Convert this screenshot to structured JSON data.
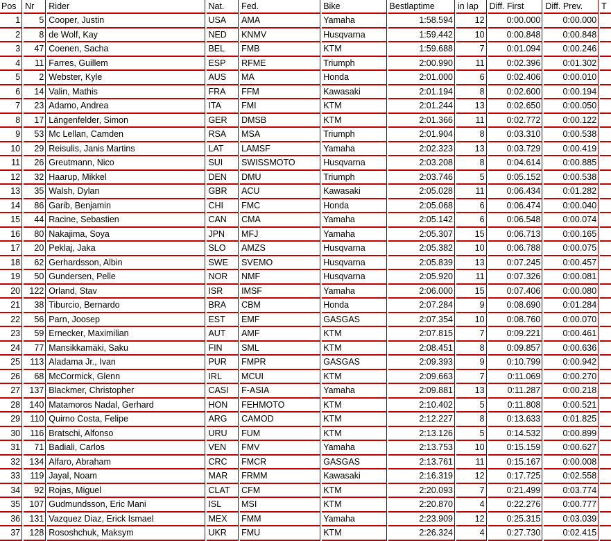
{
  "headers": [
    "Pos",
    "Nr",
    "Rider",
    "Nat.",
    "Fed.",
    "Bike",
    "Bestlaptime",
    "in lap",
    "Diff. First",
    "Diff. Prev.",
    "T"
  ],
  "rows": [
    [
      "1",
      "5",
      "Cooper, Justin",
      "USA",
      "AMA",
      "Yamaha",
      "1:58.594",
      "12",
      "0:00.000",
      "0:00.000",
      ""
    ],
    [
      "2",
      "8",
      "de Wolf, Kay",
      "NED",
      "KNMV",
      "Husqvarna",
      "1:59.442",
      "10",
      "0:00.848",
      "0:00.848",
      ""
    ],
    [
      "3",
      "47",
      "Coenen, Sacha",
      "BEL",
      "FMB",
      "KTM",
      "1:59.688",
      "7",
      "0:01.094",
      "0:00.246",
      ""
    ],
    [
      "4",
      "11",
      "Farres, Guillem",
      "ESP",
      "RFME",
      "Triumph",
      "2:00.990",
      "11",
      "0:02.396",
      "0:01.302",
      ""
    ],
    [
      "5",
      "2",
      "Webster, Kyle",
      "AUS",
      "MA",
      "Honda",
      "2:01.000",
      "6",
      "0:02.406",
      "0:00.010",
      ""
    ],
    [
      "6",
      "14",
      "Valin, Mathis",
      "FRA",
      "FFM",
      "Kawasaki",
      "2:01.194",
      "8",
      "0:02.600",
      "0:00.194",
      ""
    ],
    [
      "7",
      "23",
      "Adamo, Andrea",
      "ITA",
      "FMI",
      "KTM",
      "2:01.244",
      "13",
      "0:02.650",
      "0:00.050",
      ""
    ],
    [
      "8",
      "17",
      "Längenfelder, Simon",
      "GER",
      "DMSB",
      "KTM",
      "2:01.366",
      "11",
      "0:02.772",
      "0:00.122",
      ""
    ],
    [
      "9",
      "53",
      "Mc Lellan, Camden",
      "RSA",
      "MSA",
      "Triumph",
      "2:01.904",
      "8",
      "0:03.310",
      "0:00.538",
      ""
    ],
    [
      "10",
      "29",
      "Reisulis, Janis Martins",
      "LAT",
      "LAMSF",
      "Yamaha",
      "2:02.323",
      "13",
      "0:03.729",
      "0:00.419",
      ""
    ],
    [
      "11",
      "26",
      "Greutmann, Nico",
      "SUI",
      "SWISSMOTO",
      "Husqvarna",
      "2:03.208",
      "8",
      "0:04.614",
      "0:00.885",
      ""
    ],
    [
      "12",
      "32",
      "Haarup, Mikkel",
      "DEN",
      "DMU",
      "Triumph",
      "2:03.746",
      "5",
      "0:05.152",
      "0:00.538",
      ""
    ],
    [
      "13",
      "35",
      "Walsh, Dylan",
      "GBR",
      "ACU",
      "Kawasaki",
      "2:05.028",
      "11",
      "0:06.434",
      "0:01.282",
      ""
    ],
    [
      "14",
      "86",
      "Garib, Benjamin",
      "CHI",
      "FMC",
      "Honda",
      "2:05.068",
      "6",
      "0:06.474",
      "0:00.040",
      ""
    ],
    [
      "15",
      "44",
      "Racine, Sebastien",
      "CAN",
      "CMA",
      "Yamaha",
      "2:05.142",
      "6",
      "0:06.548",
      "0:00.074",
      ""
    ],
    [
      "16",
      "80",
      "Nakajima, Soya",
      "JPN",
      "MFJ",
      "Yamaha",
      "2:05.307",
      "15",
      "0:06.713",
      "0:00.165",
      ""
    ],
    [
      "17",
      "20",
      "Peklaj, Jaka",
      "SLO",
      "AMZS",
      "Husqvarna",
      "2:05.382",
      "10",
      "0:06.788",
      "0:00.075",
      ""
    ],
    [
      "18",
      "62",
      "Gerhardsson, Albin",
      "SWE",
      "SVEMO",
      "Husqvarna",
      "2:05.839",
      "13",
      "0:07.245",
      "0:00.457",
      ""
    ],
    [
      "19",
      "50",
      "Gundersen, Pelle",
      "NOR",
      "NMF",
      "Husqvarna",
      "2:05.920",
      "11",
      "0:07.326",
      "0:00.081",
      ""
    ],
    [
      "20",
      "122",
      "Orland, Stav",
      "ISR",
      "IMSF",
      "Yamaha",
      "2:06.000",
      "15",
      "0:07.406",
      "0:00.080",
      ""
    ],
    [
      "21",
      "38",
      "Tiburcio, Bernardo",
      "BRA",
      "CBM",
      "Honda",
      "2:07.284",
      "9",
      "0:08.690",
      "0:01.284",
      ""
    ],
    [
      "22",
      "56",
      "Parn, Joosep",
      "EST",
      "EMF",
      "GASGAS",
      "2:07.354",
      "10",
      "0:08.760",
      "0:00.070",
      ""
    ],
    [
      "23",
      "59",
      "Ernecker, Maximilian",
      "AUT",
      "AMF",
      "KTM",
      "2:07.815",
      "7",
      "0:09.221",
      "0:00.461",
      ""
    ],
    [
      "24",
      "77",
      "Mansikkamäki, Saku",
      "FIN",
      "SML",
      "KTM",
      "2:08.451",
      "8",
      "0:09.857",
      "0:00.636",
      ""
    ],
    [
      "25",
      "113",
      "Aladama Jr., Ivan",
      "PUR",
      "FMPR",
      "GASGAS",
      "2:09.393",
      "9",
      "0:10.799",
      "0:00.942",
      ""
    ],
    [
      "26",
      "68",
      "McCormick, Glenn",
      "IRL",
      "MCUI",
      "KTM",
      "2:09.663",
      "7",
      "0:11.069",
      "0:00.270",
      ""
    ],
    [
      "27",
      "137",
      "Blackmer, Christopher",
      "CASI",
      "F-ASIA",
      "Yamaha",
      "2:09.881",
      "13",
      "0:11.287",
      "0:00.218",
      ""
    ],
    [
      "28",
      "140",
      "Matamoros Nadal, Gerhard",
      "HON",
      "FEHMOTO",
      "KTM",
      "2:10.402",
      "5",
      "0:11.808",
      "0:00.521",
      ""
    ],
    [
      "29",
      "110",
      "Quirno Costa, Felipe",
      "ARG",
      "CAMOD",
      "KTM",
      "2:12.227",
      "8",
      "0:13.633",
      "0:01.825",
      ""
    ],
    [
      "30",
      "116",
      "Bratschi, Alfonso",
      "URU",
      "FUM",
      "KTM",
      "2:13.126",
      "5",
      "0:14.532",
      "0:00.899",
      ""
    ],
    [
      "31",
      "71",
      "Badiali, Carlos",
      "VEN",
      "FMV",
      "Yamaha",
      "2:13.753",
      "10",
      "0:15.159",
      "0:00.627",
      ""
    ],
    [
      "32",
      "134",
      "Alfaro, Abraham",
      "CRC",
      "FMCR",
      "GASGAS",
      "2:13.761",
      "11",
      "0:15.167",
      "0:00.008",
      ""
    ],
    [
      "33",
      "119",
      "Jayal, Noam",
      "MAR",
      "FRMM",
      "Kawasaki",
      "2:16.319",
      "12",
      "0:17.725",
      "0:02.558",
      ""
    ],
    [
      "34",
      "92",
      "Rojas, Miguel",
      "CLAT",
      "CFM",
      "KTM",
      "2:20.093",
      "7",
      "0:21.499",
      "0:03.774",
      ""
    ],
    [
      "35",
      "107",
      "Gudmundsson, Eric Mani",
      "ISL",
      "MSI",
      "KTM",
      "2:20.870",
      "4",
      "0:22.276",
      "0:00.777",
      ""
    ],
    [
      "36",
      "131",
      "Vazquez Diaz, Erick Ismael",
      "MEX",
      "FMM",
      "Yamaha",
      "2:23.909",
      "12",
      "0:25.315",
      "0:03.039",
      ""
    ],
    [
      "37",
      "128",
      "Rososhchuk, Maksym",
      "UKR",
      "FMU",
      "KTM",
      "2:26.324",
      "4",
      "0:27.730",
      "0:02.415",
      ""
    ]
  ]
}
